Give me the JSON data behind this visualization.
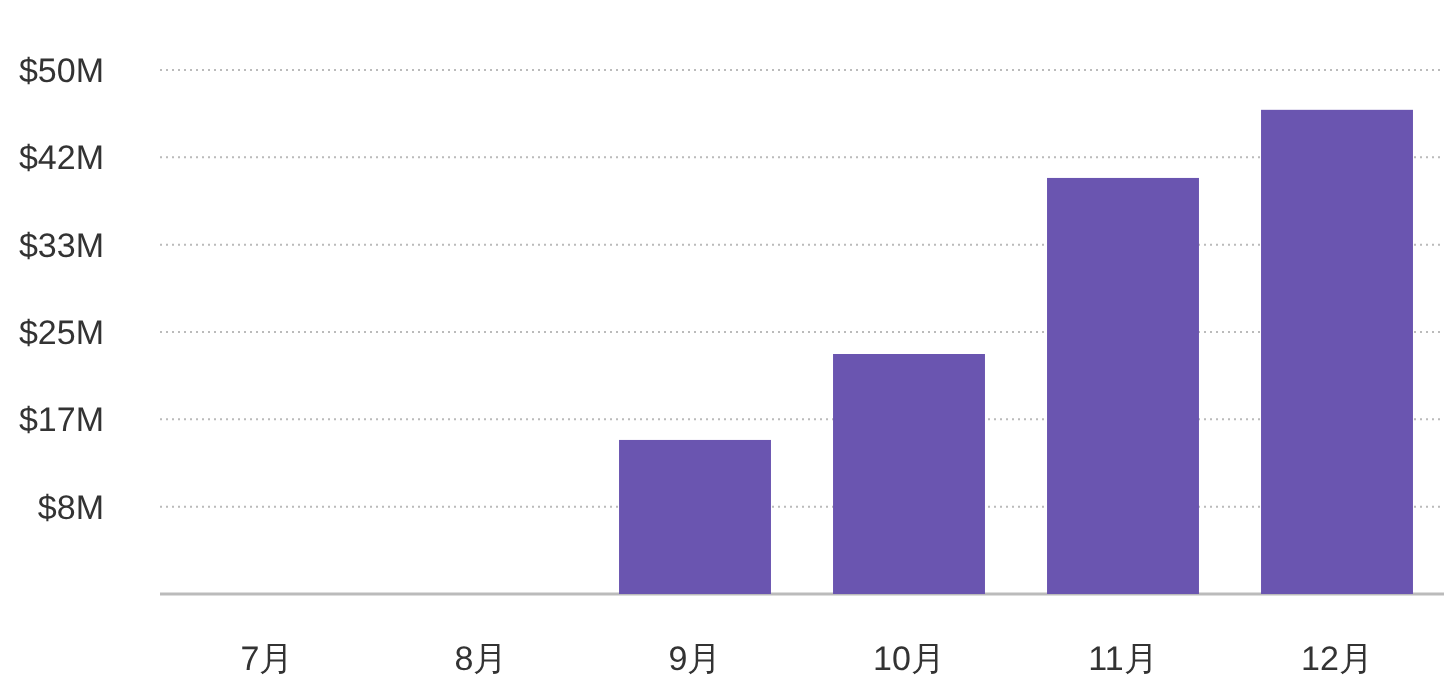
{
  "chart_data": {
    "type": "bar",
    "categories": [
      "7月",
      "8月",
      "9月",
      "10月",
      "11月",
      "12月"
    ],
    "values": [
      0,
      0,
      14.7,
      22.9,
      39.7,
      46.2
    ],
    "color": "#6a55b0",
    "ylim": [
      0,
      50
    ],
    "yticks": [
      {
        "value": 8.33,
        "label": "$8M"
      },
      {
        "value": 16.67,
        "label": "$17M"
      },
      {
        "value": 25,
        "label": "$25M"
      },
      {
        "value": 33.33,
        "label": "$33M"
      },
      {
        "value": 41.67,
        "label": "$42M"
      },
      {
        "value": 50,
        "label": "$50M"
      }
    ],
    "grid": "y"
  }
}
